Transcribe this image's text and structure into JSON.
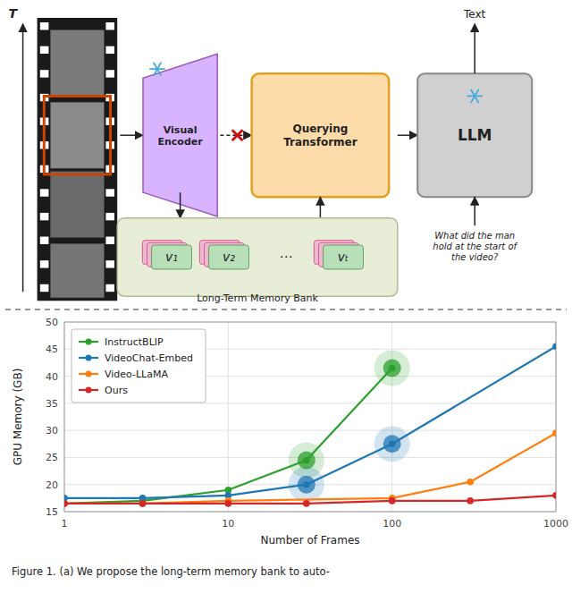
{
  "chart_data": {
    "type": "line",
    "xlabel": "Number of Frames",
    "ylabel": "GPU Memory (GB)",
    "log": "x",
    "xlim": [
      1,
      1000
    ],
    "xticks": [
      1,
      10,
      100,
      1000
    ],
    "ylim": [
      15,
      50
    ],
    "yticks": [
      15,
      20,
      25,
      30,
      35,
      40,
      45,
      50
    ],
    "grid": true,
    "legend": "upper left",
    "marker": "circle",
    "series": [
      {
        "name": "InstructBLIP",
        "color": "#2ca02c",
        "x": [
          1,
          3,
          10,
          30,
          100
        ],
        "values": [
          16.5,
          17.0,
          19.0,
          24.5,
          41.5
        ],
        "highlight_x": [
          30,
          100
        ],
        "highlight_values": [
          24.5,
          41.5
        ]
      },
      {
        "name": "VideoChat-Embed",
        "color": "#1f77b4",
        "x": [
          1,
          3,
          10,
          30,
          100,
          1000
        ],
        "values": [
          17.5,
          17.5,
          18.0,
          20.0,
          27.5,
          45.5
        ],
        "highlight_x": [
          30,
          100
        ],
        "highlight_values": [
          20.0,
          27.5
        ]
      },
      {
        "name": "Video-LLaMA",
        "color": "#ff7f0e",
        "x": [
          1,
          3,
          10,
          100,
          300,
          1000
        ],
        "values": [
          16.5,
          16.5,
          17.0,
          17.5,
          20.5,
          29.5
        ]
      },
      {
        "name": "Ours",
        "color": "#d62728",
        "x": [
          1,
          3,
          10,
          30,
          100,
          300,
          1000
        ],
        "values": [
          16.5,
          16.5,
          16.5,
          16.5,
          17.0,
          17.0,
          18.0
        ]
      }
    ],
    "annotations": [
      "T",
      "Visual\nEncoder",
      "Querying\nTransformer",
      "LLM",
      "Text",
      "What did the man\nhold at the start of\nthe video?",
      "v₁",
      "v₂",
      "⋯",
      "vₜ",
      "Long-Term Memory Bank",
      "Figure 1.  (a) We propose the long-term memory bank to auto-"
    ]
  }
}
